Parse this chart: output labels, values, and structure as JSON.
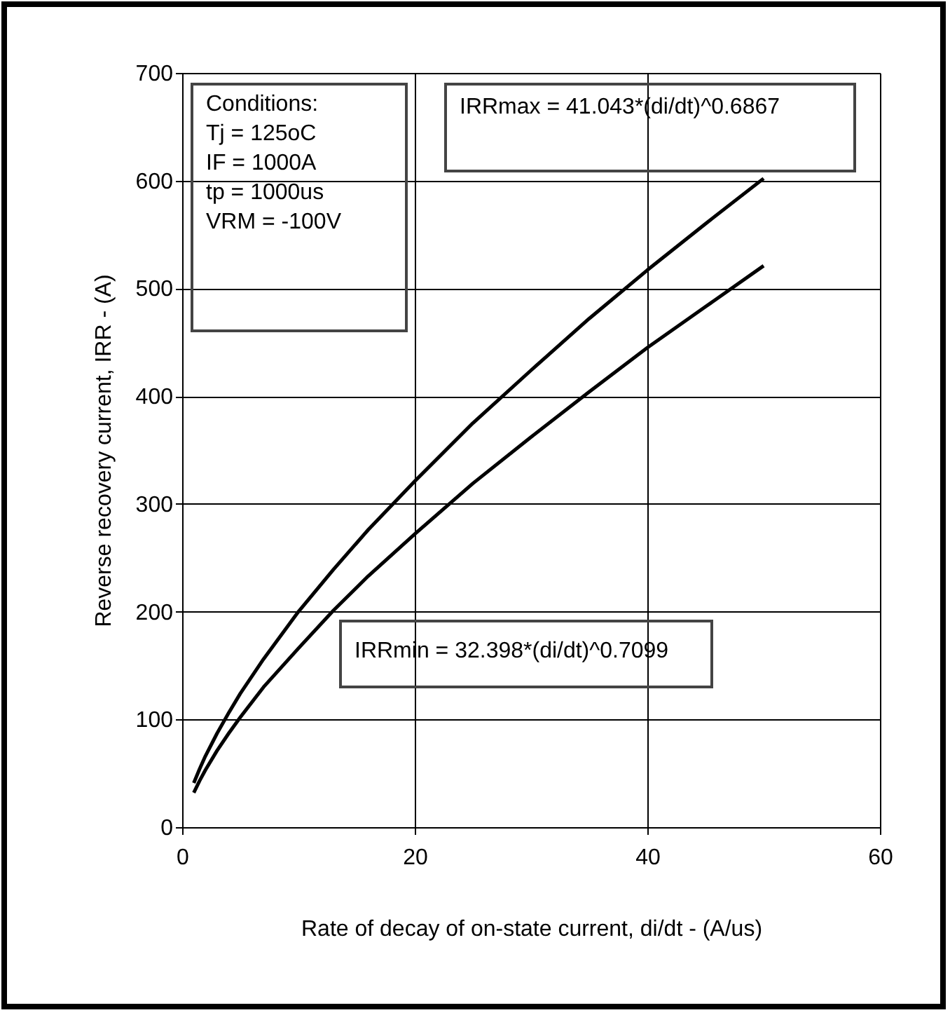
{
  "chart_data": {
    "type": "line",
    "xlabel": "Rate of decay of on-state current, di/dt - (A/us)",
    "ylabel": "Reverse recovery current, IRR - (A)",
    "series": [
      {
        "color": "#000000",
        "x": [
          1,
          1.5,
          2,
          3,
          4,
          5,
          7,
          10,
          13,
          16,
          20,
          25,
          30,
          35,
          40,
          45,
          50
        ],
        "values": [
          41,
          54,
          66,
          87,
          106,
          124,
          156,
          200,
          239,
          276,
          321,
          375,
          424,
          472,
          517,
          560,
          602
        ]
      },
      {
        "color": "#000000",
        "x": [
          1,
          1.5,
          2,
          3,
          4,
          5,
          7,
          10,
          13,
          16,
          20,
          25,
          30,
          35,
          40,
          45,
          50
        ],
        "values": [
          32,
          43,
          53,
          71,
          87,
          102,
          130,
          166,
          201,
          233,
          272,
          319,
          362,
          404,
          445,
          483,
          521
        ]
      }
    ],
    "xlim": [
      0,
      60
    ],
    "xticks": [
      0,
      20,
      40,
      60
    ],
    "ylim": [
      0,
      700
    ],
    "yticks": [
      0,
      100,
      200,
      300,
      400,
      500,
      600,
      700
    ],
    "grid": true,
    "marker": "none",
    "line_style": "solid",
    "annotations": [
      "Conditions:\nTj = 125oC\nIF = 1000A\ntp = 1000us\nVRM = -100V",
      "IRRmax = 41.043*(di/dt)^0.6867",
      "IRRmin = 32.398*(di/dt)^0.7099"
    ]
  }
}
